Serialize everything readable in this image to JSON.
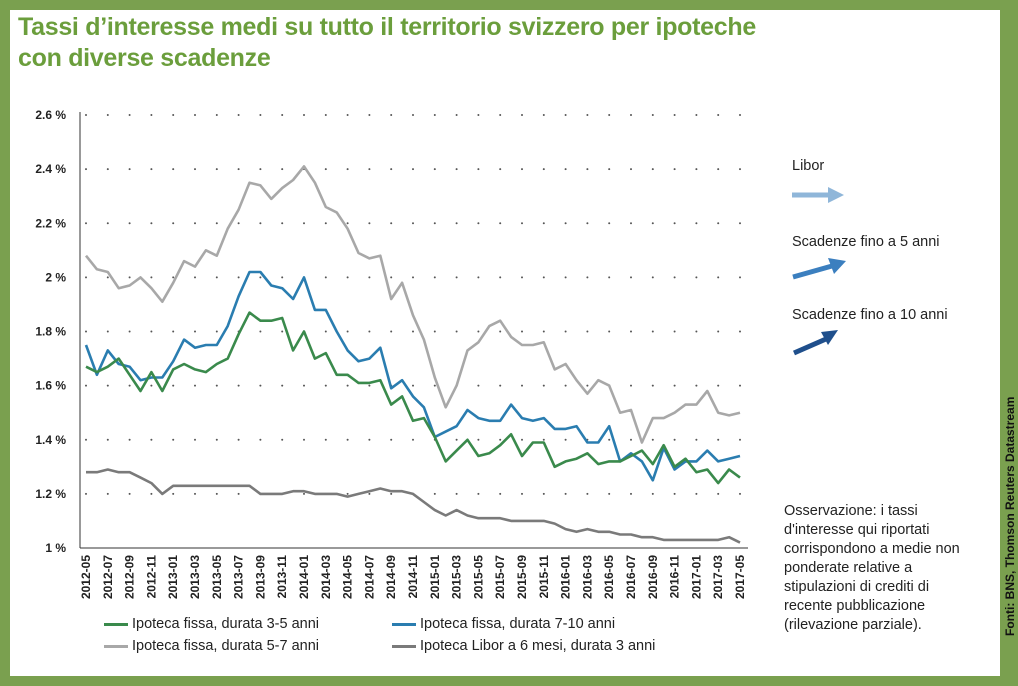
{
  "title_line1": "Tassi d’interesse medi su tutto il territorio svizzero per ipoteche",
  "title_line2": "con diverse scadenze",
  "source": "Fonti: BNS, Thomson Reuters Datastream",
  "note": "Osservazione: i tassi d'interesse qui riportati corrispondono a medie non ponderate relative a stipulazioni di crediti di recente pubblicazione (rilevazione parziale).",
  "arrows": [
    {
      "label": "Libor",
      "color": "#8fb6d9"
    },
    {
      "label": "Scadenze fino a 5 anni",
      "color": "#3b7fbf"
    },
    {
      "label": "Scadenze fino a 10 anni",
      "color": "#1f4f8c"
    }
  ],
  "chart_data": {
    "type": "line",
    "title": "",
    "xlabel": "",
    "ylabel": "",
    "ylim": [
      1.0,
      2.6
    ],
    "yticks": [
      1.0,
      1.2,
      1.4,
      1.6,
      1.8,
      2.0,
      2.2,
      2.4,
      2.6
    ],
    "ytick_labels": [
      "1 %",
      "1.2 %",
      "1.4 %",
      "1.6 %",
      "1.8 %",
      "2 %",
      "2.2 %",
      "2.4 %",
      "2.6 %"
    ],
    "grid": "dotted",
    "legend_position": "bottom",
    "x": [
      "2012-05",
      "2012-06",
      "2012-07",
      "2012-08",
      "2012-09",
      "2012-10",
      "2012-11",
      "2012-12",
      "2013-01",
      "2013-02",
      "2013-03",
      "2013-04",
      "2013-05",
      "2013-06",
      "2013-07",
      "2013-08",
      "2013-09",
      "2013-10",
      "2013-11",
      "2013-12",
      "2014-01",
      "2014-02",
      "2014-03",
      "2014-04",
      "2014-05",
      "2014-06",
      "2014-07",
      "2014-08",
      "2014-09",
      "2014-10",
      "2014-11",
      "2014-12",
      "2015-01",
      "2015-02",
      "2015-03",
      "2015-04",
      "2015-05",
      "2015-06",
      "2015-07",
      "2015-08",
      "2015-09",
      "2015-10",
      "2015-11",
      "2015-12",
      "2016-01",
      "2016-02",
      "2016-03",
      "2016-04",
      "2016-05",
      "2016-06",
      "2016-07",
      "2016-08",
      "2016-09",
      "2016-10",
      "2016-11",
      "2016-12",
      "2017-01",
      "2017-02",
      "2017-03",
      "2017-04",
      "2017-05"
    ],
    "x_tick_labels": [
      "2012-05",
      "2012-07",
      "2012-09",
      "2012-11",
      "2013-01",
      "2013-03",
      "2013-05",
      "2013-07",
      "2013-09",
      "2013-11",
      "2014-01",
      "2014-03",
      "2014-05",
      "2014-07",
      "2014-09",
      "2014-11",
      "2015-01",
      "2015-03",
      "2015-05",
      "2015-07",
      "2015-09",
      "2015-11",
      "2016-01",
      "2016-03",
      "2016-05",
      "2016-07",
      "2016-09",
      "2016-11",
      "2017-01",
      "2017-03",
      "2017-05"
    ],
    "series": [
      {
        "name": "Ipoteca fissa, durata 3-5 anni",
        "color": "#3a8a4c",
        "values": [
          1.67,
          1.65,
          1.67,
          1.7,
          1.64,
          1.58,
          1.65,
          1.58,
          1.66,
          1.68,
          1.66,
          1.65,
          1.68,
          1.7,
          1.79,
          1.87,
          1.84,
          1.84,
          1.85,
          1.73,
          1.8,
          1.7,
          1.72,
          1.64,
          1.64,
          1.61,
          1.61,
          1.62,
          1.53,
          1.56,
          1.47,
          1.48,
          1.41,
          1.32,
          1.36,
          1.4,
          1.34,
          1.35,
          1.38,
          1.42,
          1.34,
          1.39,
          1.39,
          1.3,
          1.32,
          1.33,
          1.35,
          1.31,
          1.32,
          1.32,
          1.34,
          1.36,
          1.31,
          1.38,
          1.3,
          1.33,
          1.28,
          1.29,
          1.24,
          1.29,
          1.26
        ]
      },
      {
        "name": "Ipoteca fissa, durata 7-10 anni",
        "color": "#2a7db0",
        "values": [
          1.75,
          1.64,
          1.73,
          1.68,
          1.67,
          1.62,
          1.63,
          1.63,
          1.69,
          1.77,
          1.74,
          1.75,
          1.75,
          1.82,
          1.93,
          2.02,
          2.02,
          1.97,
          1.96,
          1.92,
          2.0,
          1.88,
          1.88,
          1.8,
          1.73,
          1.69,
          1.7,
          1.74,
          1.59,
          1.62,
          1.56,
          1.52,
          1.41,
          1.43,
          1.45,
          1.51,
          1.48,
          1.47,
          1.47,
          1.53,
          1.48,
          1.47,
          1.48,
          1.44,
          1.44,
          1.45,
          1.39,
          1.39,
          1.45,
          1.32,
          1.35,
          1.32,
          1.25,
          1.37,
          1.29,
          1.32,
          1.32,
          1.36,
          1.32,
          1.33,
          1.34
        ]
      },
      {
        "name": "Ipoteca fissa, durata 5-7 anni",
        "color": "#a8a8a8",
        "values": [
          2.08,
          2.03,
          2.02,
          1.96,
          1.97,
          2.0,
          1.96,
          1.91,
          1.98,
          2.06,
          2.04,
          2.1,
          2.08,
          2.18,
          2.25,
          2.35,
          2.34,
          2.29,
          2.33,
          2.36,
          2.41,
          2.35,
          2.26,
          2.24,
          2.18,
          2.09,
          2.07,
          2.08,
          1.92,
          1.98,
          1.86,
          1.77,
          1.63,
          1.52,
          1.6,
          1.73,
          1.76,
          1.82,
          1.84,
          1.78,
          1.75,
          1.75,
          1.76,
          1.66,
          1.68,
          1.62,
          1.57,
          1.62,
          1.6,
          1.5,
          1.51,
          1.39,
          1.48,
          1.48,
          1.5,
          1.53,
          1.53,
          1.58,
          1.5,
          1.49,
          1.5
        ]
      },
      {
        "name": "Ipoteca Libor a 6 mesi, durata 3 anni",
        "color": "#7a7a7a",
        "values": [
          1.28,
          1.28,
          1.29,
          1.28,
          1.28,
          1.26,
          1.24,
          1.2,
          1.23,
          1.23,
          1.23,
          1.23,
          1.23,
          1.23,
          1.23,
          1.23,
          1.2,
          1.2,
          1.2,
          1.21,
          1.21,
          1.2,
          1.2,
          1.2,
          1.19,
          1.2,
          1.21,
          1.22,
          1.21,
          1.21,
          1.2,
          1.17,
          1.14,
          1.12,
          1.14,
          1.12,
          1.11,
          1.11,
          1.11,
          1.1,
          1.1,
          1.1,
          1.1,
          1.09,
          1.07,
          1.06,
          1.07,
          1.06,
          1.06,
          1.05,
          1.05,
          1.04,
          1.04,
          1.03,
          1.03,
          1.03,
          1.03,
          1.03,
          1.03,
          1.04,
          1.02
        ]
      }
    ]
  }
}
